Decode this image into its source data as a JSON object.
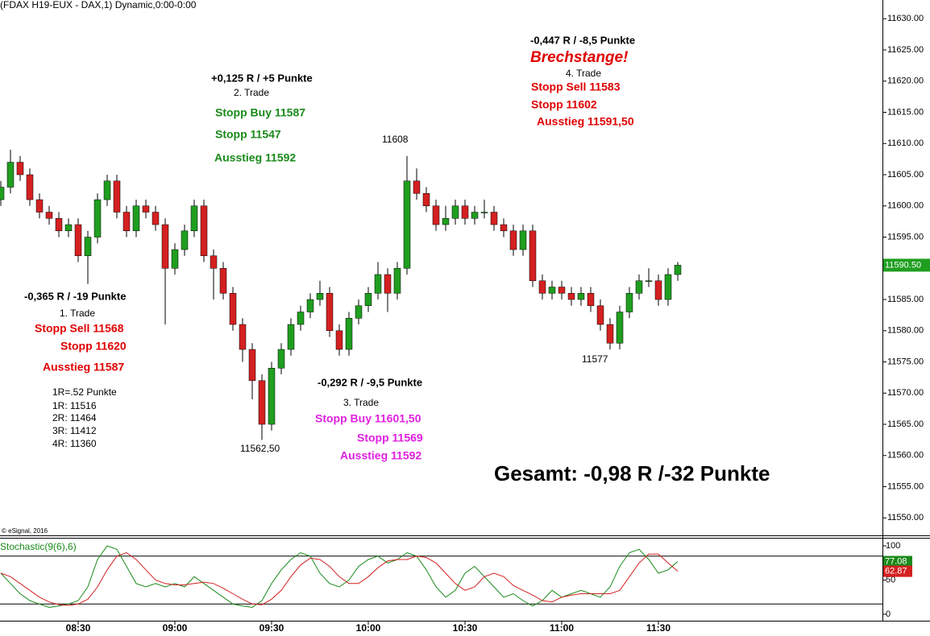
{
  "chart_data": [
    {
      "type": "candlestick",
      "title": "(FDAX H19-EUX - DAX,1) Dynamic,0:00-0:00",
      "credit": "© eSignal, 2016",
      "up_color": "#1f9e1f",
      "down_color": "#d42020",
      "x": [
        486,
        489,
        492,
        495,
        498,
        501,
        504,
        507,
        510,
        513,
        516,
        519,
        522,
        525,
        528,
        531,
        534,
        537,
        540,
        543,
        546,
        549,
        552,
        555,
        558,
        561,
        564,
        567,
        570,
        573,
        576,
        579,
        582,
        585,
        588,
        591,
        594,
        597,
        600,
        603,
        606,
        609,
        612,
        615,
        618,
        621,
        624,
        627,
        630,
        633,
        636,
        639,
        642,
        645,
        648,
        651,
        654,
        657,
        660,
        663,
        666,
        669,
        672,
        675,
        678,
        681,
        684,
        687,
        690,
        693,
        696
      ],
      "open": [
        11601,
        11603,
        11607,
        11605,
        11601,
        11599,
        11598,
        11596,
        11597,
        11592,
        11595,
        11601,
        11604,
        11599,
        11596,
        11600,
        11599,
        11597,
        11590,
        11593,
        11596,
        11600,
        11592,
        11590,
        11586,
        11581,
        11577,
        11572,
        11565,
        11574,
        11577,
        11581,
        11583,
        11585,
        11586,
        11580,
        11577,
        11582,
        11584,
        11586,
        11589,
        11586,
        11590,
        11604,
        11602,
        11600,
        11597,
        11598,
        11600,
        11598,
        11599,
        11599,
        11597,
        11596,
        11593,
        11596,
        11588,
        11586,
        11587,
        11586,
        11585,
        11586,
        11584,
        11581,
        11578,
        11583,
        11586,
        11588,
        11588,
        11585,
        11589
      ],
      "high": [
        11604,
        11609,
        11608,
        11606,
        11602,
        11600,
        11599,
        11598,
        11598,
        11596,
        11602,
        11605,
        11605,
        11600,
        11601,
        11601,
        11600,
        11598,
        11594,
        11597,
        11601,
        11601,
        11593,
        11591,
        11587,
        11582,
        11578,
        11573,
        11575,
        11578,
        11582,
        11584,
        11586,
        11588,
        11587,
        11581,
        11583,
        11585,
        11587,
        11591,
        11590,
        11591,
        11608,
        11606,
        11603,
        11601,
        11600,
        11601,
        11601,
        11600,
        11601,
        11600,
        11598,
        11597,
        11597,
        11597,
        11589,
        11588,
        11588,
        11587,
        11587,
        11587,
        11585,
        11582,
        11584,
        11587,
        11589,
        11590,
        11589,
        11590,
        11591
      ],
      "low": [
        11600,
        11602,
        11604,
        11600,
        11598,
        11597,
        11595,
        11595,
        11591,
        11587.5,
        11594,
        11600,
        11598,
        11595,
        11595,
        11598,
        11596,
        11581,
        11589,
        11592,
        11595,
        11591,
        11585,
        11585,
        11580,
        11575,
        11569,
        11562.5,
        11564,
        11573,
        11576,
        11580,
        11582,
        11584,
        11579,
        11576,
        11576,
        11581,
        11583,
        11585,
        11583,
        11585,
        11589,
        11601,
        11599,
        11596,
        11596,
        11597,
        11597,
        11597,
        11598,
        11596,
        11595,
        11592,
        11592,
        11587,
        11585,
        11585,
        11585,
        11584,
        11584,
        11583,
        11580,
        11577,
        11577,
        11582,
        11585,
        11587,
        11584,
        11584,
        11588
      ],
      "close": [
        11603,
        11607,
        11605,
        11601,
        11599,
        11598,
        11596,
        11597,
        11592,
        11595,
        11601,
        11604,
        11599,
        11596,
        11600,
        11599,
        11597,
        11590,
        11593,
        11596,
        11600,
        11592,
        11590,
        11586,
        11581,
        11577,
        11572,
        11565,
        11574,
        11577,
        11581,
        11583,
        11585,
        11586,
        11580,
        11577,
        11582,
        11584,
        11586,
        11589,
        11586,
        11590,
        11604,
        11602,
        11600,
        11597,
        11598,
        11600,
        11598,
        11599,
        11599,
        11597,
        11596,
        11593,
        11596,
        11588,
        11586,
        11587,
        11586,
        11585,
        11586,
        11584,
        11581,
        11578,
        11583,
        11586,
        11588,
        11588,
        11585,
        11589,
        11590.5
      ],
      "xlim": [
        485.75,
        759.5
      ],
      "ylim": [
        11547.2,
        11633
      ],
      "yticks": [
        {
          "value": 11550,
          "label": "11550.00"
        },
        {
          "value": 11555,
          "label": "11555.00"
        },
        {
          "value": 11560,
          "label": "11560.00"
        },
        {
          "value": 11565,
          "label": "11565.00"
        },
        {
          "value": 11570,
          "label": "11570.00"
        },
        {
          "value": 11575,
          "label": "11575.00"
        },
        {
          "value": 11580,
          "label": "11580.00"
        },
        {
          "value": 11585,
          "label": "11585.00"
        },
        {
          "value": 11590,
          "label": "11590.00"
        },
        {
          "value": 11595,
          "label": "11595.00"
        },
        {
          "value": 11600,
          "label": "11600.00"
        },
        {
          "value": 11605,
          "label": "11605.00"
        },
        {
          "value": 11610,
          "label": "11610.00"
        },
        {
          "value": 11615,
          "label": "11615.00"
        },
        {
          "value": 11620,
          "label": "11620.00"
        },
        {
          "value": 11625,
          "label": "11625.00"
        },
        {
          "value": 11630,
          "label": "11630.00"
        }
      ],
      "last_price": {
        "value": 11590.5,
        "label": "11590.50"
      },
      "last_price_color": "#1f9e1f",
      "annotations": [
        {
          "text": "-0,447 R / -8,5 Punkte",
          "color": "#000000"
        },
        {
          "text": "Brechstange!",
          "color": "#e00000"
        },
        {
          "text": "4. Trade",
          "color": "#000000"
        },
        {
          "text": "Stopp Sell 11583",
          "color": "#e00000"
        },
        {
          "text": "Stopp 11602",
          "color": "#e00000"
        },
        {
          "text": "Ausstieg 11591,50",
          "color": "#e00000"
        },
        {
          "text": "+0,125 R / +5 Punkte",
          "color": "#000000"
        },
        {
          "text": "2. Trade",
          "color": "#000000"
        },
        {
          "text": "Stopp Buy 11587",
          "color": "#1a8a1a"
        },
        {
          "text": "Stopp 11547",
          "color": "#1a8a1a"
        },
        {
          "text": "Ausstieg 11592",
          "color": "#1a8a1a"
        },
        {
          "text": "11608",
          "color": "#000000"
        },
        {
          "text": "-0,365 R / -19 Punkte",
          "color": "#000000"
        },
        {
          "text": "1. Trade",
          "color": "#000000"
        },
        {
          "text": "Stopp Sell 11568",
          "color": "#e00000"
        },
        {
          "text": "Stopp 11620",
          "color": "#e00000"
        },
        {
          "text": "Ausstieg 11587",
          "color": "#e00000"
        },
        {
          "text": "1R=.52 Punkte",
          "color": "#000000"
        },
        {
          "text": "1R: 11516",
          "color": "#000000"
        },
        {
          "text": "2R: 11464",
          "color": "#000000"
        },
        {
          "text": "3R: 11412",
          "color": "#000000"
        },
        {
          "text": "4R: 11360",
          "color": "#000000"
        },
        {
          "text": "11562,50",
          "color": "#000000"
        },
        {
          "text": "-0,292 R / -9,5 Punkte",
          "color": "#000000"
        },
        {
          "text": "3. Trade",
          "color": "#000000"
        },
        {
          "text": "Stopp Buy 11601,50",
          "color": "#e020e0"
        },
        {
          "text": "Stopp 11569",
          "color": "#e020e0"
        },
        {
          "text": "Ausstieg 11592",
          "color": "#e020e0"
        },
        {
          "text": "11577",
          "color": "#000000"
        },
        {
          "text": "Gesamt: -0,98 R /-32 Punkte",
          "color": "#000000"
        }
      ]
    },
    {
      "type": "stochastic",
      "title": "Stochastic(9(6),6)",
      "title_color": "#1a8a1a",
      "xlim": [
        485.75,
        759.5
      ],
      "ylim": [
        -8.2,
        111.8
      ],
      "yticks": [
        0,
        50,
        100
      ],
      "levels": [
        85,
        15
      ],
      "xticks": [
        {
          "value": 510,
          "label": "08:30"
        },
        {
          "value": 540,
          "label": "09:00"
        },
        {
          "value": 570,
          "label": "09:30"
        },
        {
          "value": 600,
          "label": "10:00"
        },
        {
          "value": 630,
          "label": "10:30"
        },
        {
          "value": 660,
          "label": "11:00"
        },
        {
          "value": 690,
          "label": "11:30"
        }
      ],
      "series": [
        {
          "color": "#1a8a1a",
          "values": [
            60,
            45,
            30,
            20,
            15,
            10,
            12,
            15,
            20,
            40,
            80,
            100,
            95,
            70,
            45,
            40,
            45,
            40,
            45,
            40,
            55,
            45,
            35,
            25,
            15,
            12,
            10,
            20,
            45,
            65,
            80,
            90,
            85,
            60,
            45,
            40,
            50,
            70,
            80,
            85,
            75,
            80,
            90,
            85,
            65,
            40,
            25,
            35,
            60,
            70,
            55,
            40,
            25,
            30,
            20,
            12,
            20,
            35,
            25,
            30,
            35,
            30,
            25,
            40,
            70,
            90,
            95,
            80,
            60,
            65,
            77.08
          ]
        },
        {
          "color": "#d42020",
          "values": [
            60,
            55,
            45,
            35,
            25,
            18,
            14,
            13,
            15,
            22,
            40,
            65,
            85,
            90,
            80,
            65,
            50,
            45,
            43,
            43,
            45,
            47,
            45,
            38,
            30,
            22,
            15,
            14,
            22,
            35,
            55,
            72,
            82,
            80,
            70,
            55,
            45,
            45,
            55,
            68,
            78,
            80,
            80,
            85,
            83,
            75,
            60,
            45,
            35,
            40,
            55,
            60,
            55,
            42,
            35,
            28,
            20,
            18,
            25,
            28,
            30,
            30,
            30,
            30,
            35,
            55,
            75,
            88,
            88,
            75,
            62.87
          ]
        }
      ]
    }
  ]
}
